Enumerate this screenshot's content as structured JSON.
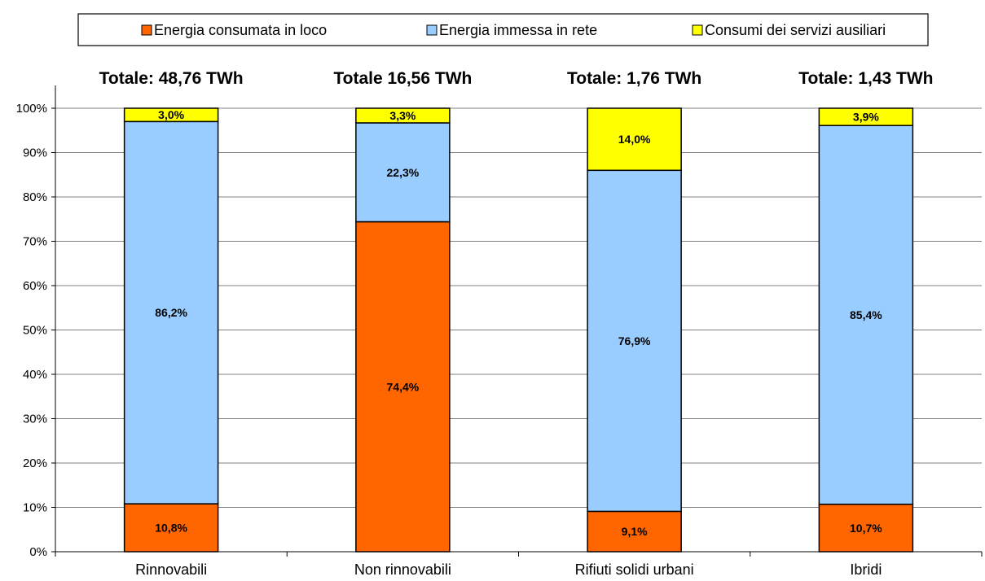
{
  "chart_data": {
    "type": "bar",
    "stacked": true,
    "percent_stacked": true,
    "categories": [
      "Rinnovabili",
      "Non rinnovabili",
      "Rifiuti solidi urbani",
      "Ibridi"
    ],
    "totals": [
      "Totale: 48,76 TWh",
      "Totale 16,56 TWh",
      "Totale: 1,76 TWh",
      "Totale: 1,43 TWh"
    ],
    "series": [
      {
        "name": "Energia consumata in loco",
        "color": "#FF6600",
        "values": [
          10.8,
          74.4,
          9.1,
          10.7
        ],
        "labels": [
          "10,8%",
          "74,4%",
          "9,1%",
          "10,7%"
        ]
      },
      {
        "name": "Energia immessa in rete",
        "color": "#99CCFF",
        "values": [
          86.2,
          22.3,
          76.9,
          85.4
        ],
        "labels": [
          "86,2%",
          "22,3%",
          "76,9%",
          "85,4%"
        ]
      },
      {
        "name": "Consumi dei servizi ausiliari",
        "color": "#FFFF00",
        "values": [
          3.0,
          3.3,
          14.0,
          3.9
        ],
        "labels": [
          "3,0%",
          "3,3%",
          "14,0%",
          "3,9%"
        ]
      }
    ],
    "yticks": [
      "0%",
      "10%",
      "20%",
      "30%",
      "40%",
      "50%",
      "60%",
      "70%",
      "80%",
      "90%",
      "100%"
    ],
    "ylim": [
      0,
      100
    ],
    "grid": true,
    "legend": "top"
  }
}
